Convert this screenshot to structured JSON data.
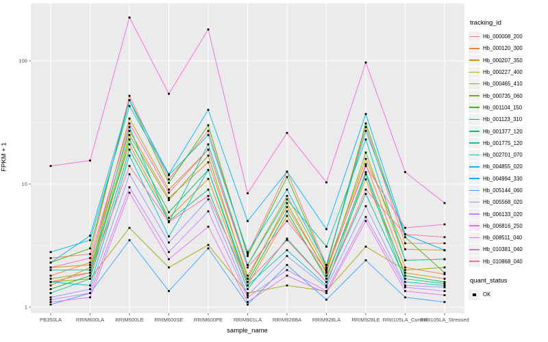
{
  "colors": {
    "panel_bg": "#EBEBEB",
    "grid": "#FFFFFF",
    "tick": "#333333",
    "tick_label": "#4D4D4D",
    "point": "#000000",
    "legend_key_bg": "#F1F1F1"
  },
  "legend": {
    "tracking_title": "tracking_id",
    "quant_title": "quant_status",
    "quant_items": [
      {
        "label": "OK",
        "shape": "square"
      }
    ]
  },
  "chart_data": {
    "type": "line",
    "xlabel": "sample_name",
    "ylabel": "FPKM + 1",
    "y_scale": "log10",
    "y_ticks": [
      1,
      10,
      100
    ],
    "y_minor": [
      3.1623,
      31.623
    ],
    "ylim": [
      0.9,
      293
    ],
    "grid": true,
    "legend_position": "right",
    "point_shape": "square",
    "categories": [
      "PB350LA",
      "RRIM600LA",
      "RRIM600LE",
      "RRIM600SE",
      "RRIM600PE",
      "RRIM901LA",
      "RRIM928BA",
      "RRIM928LA",
      "RRIM928LE",
      "RRII105LA_Control",
      "RRII105LA_Stressed"
    ],
    "series": [
      {
        "name": "Hb_000008_200",
        "color": "#F8766D",
        "values": [
          2.5,
          2.7,
          52,
          10.9,
          27,
          2.7,
          12.6,
          2.2,
          29,
          3.3,
          3.3
        ]
      },
      {
        "name": "Hb_000120_300",
        "color": "#EA8331",
        "values": [
          1.8,
          2.3,
          27,
          7.7,
          15,
          1.8,
          6.5,
          1.95,
          14.5,
          2.1,
          1.85
        ]
      },
      {
        "name": "Hb_000207_350",
        "color": "#D89000",
        "values": [
          1.5,
          2.1,
          21,
          5.3,
          11,
          1.5,
          5.5,
          1.8,
          10.9,
          1.9,
          1.7
        ]
      },
      {
        "name": "Hb_000227_400",
        "color": "#C09B00",
        "values": [
          2.1,
          2.2,
          34,
          9.0,
          19,
          2.2,
          8.0,
          2.05,
          16,
          2.95,
          2.9
        ]
      },
      {
        "name": "Hb_000465_410",
        "color": "#A3A500",
        "values": [
          1.6,
          1.7,
          4.4,
          2.1,
          3.2,
          1.3,
          1.5,
          1.35,
          3.1,
          2.0,
          2.1
        ]
      },
      {
        "name": "Hb_000735_060",
        "color": "#7CAE00",
        "values": [
          1.7,
          1.9,
          25,
          7.4,
          17,
          1.7,
          7.0,
          1.9,
          18,
          2.4,
          2.45
        ]
      },
      {
        "name": "Hb_001104_150",
        "color": "#39B600",
        "values": [
          2.3,
          3.0,
          48,
          10.2,
          30,
          2.6,
          11.4,
          2.1,
          31,
          3.7,
          1.9
        ]
      },
      {
        "name": "Hb_001123_310",
        "color": "#00BB4E",
        "values": [
          1.4,
          1.8,
          23,
          5.9,
          13,
          1.6,
          6.0,
          1.7,
          12.5,
          1.8,
          1.6
        ]
      },
      {
        "name": "Hb_001377_120",
        "color": "#00BF7D",
        "values": [
          1.3,
          1.7,
          19,
          5.0,
          9.0,
          1.4,
          3.6,
          1.6,
          8.3,
          1.7,
          1.55
        ]
      },
      {
        "name": "Hb_001775_120",
        "color": "#00C1A3",
        "values": [
          2.0,
          2.0,
          29,
          4.9,
          21,
          2.2,
          7.5,
          3.1,
          23,
          2.4,
          2.45
        ]
      },
      {
        "name": "Hb_002701_070",
        "color": "#00BFC4",
        "values": [
          1.6,
          1.5,
          17,
          3.75,
          13,
          1.5,
          2.9,
          1.5,
          12,
          1.6,
          1.5
        ]
      },
      {
        "name": "Hb_004855_020",
        "color": "#00BAE0",
        "values": [
          2.8,
          3.5,
          43,
          11.8,
          25,
          2.8,
          9.0,
          2.2,
          27,
          3.9,
          2.9
        ]
      },
      {
        "name": "Hb_004994_330",
        "color": "#00B0F6",
        "values": [
          2.3,
          3.8,
          48,
          12,
          40,
          5.0,
          12.6,
          4.3,
          37,
          3.9,
          2.9
        ]
      },
      {
        "name": "Hb_005144_060",
        "color": "#35A2FF",
        "values": [
          1.05,
          1.3,
          3.5,
          1.35,
          3.0,
          1.05,
          2.2,
          1.15,
          2.4,
          1.2,
          1.1
        ]
      },
      {
        "name": "Hb_005568_020",
        "color": "#9590FF",
        "values": [
          1.2,
          1.4,
          12,
          3.35,
          7.5,
          1.25,
          2.6,
          1.45,
          6.6,
          1.5,
          1.45
        ]
      },
      {
        "name": "Hb_006133_020",
        "color": "#C77CFF",
        "values": [
          1.15,
          1.3,
          9.4,
          2.8,
          6.0,
          1.2,
          2.0,
          1.35,
          5.4,
          1.45,
          1.35
        ]
      },
      {
        "name": "Hb_006816_250",
        "color": "#E76BF3",
        "values": [
          1.1,
          1.2,
          8.5,
          2.45,
          4.5,
          1.1,
          1.8,
          1.3,
          5.0,
          1.35,
          1.25
        ]
      },
      {
        "name": "Hb_008511_040",
        "color": "#FA62DB",
        "values": [
          14,
          15.5,
          225,
          54,
          180,
          8.4,
          26,
          10.3,
          97,
          12.5,
          7.0
        ]
      },
      {
        "name": "Hb_010381_040",
        "color": "#FF62BC",
        "values": [
          2.1,
          2.5,
          31,
          8.5,
          19,
          2.1,
          5.0,
          2.0,
          14,
          4.4,
          4.7
        ]
      },
      {
        "name": "Hb_010868_040",
        "color": "#FF6A98",
        "values": [
          1.6,
          1.9,
          14,
          4.9,
          8.0,
          1.6,
          3.5,
          1.6,
          9.0,
          3.9,
          3.7
        ]
      }
    ]
  }
}
